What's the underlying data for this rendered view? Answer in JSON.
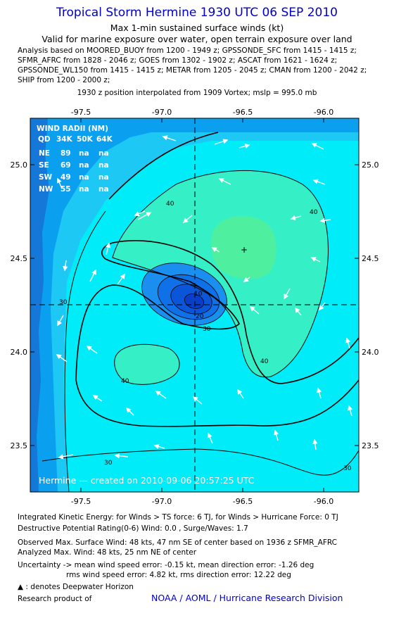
{
  "header": {
    "title": "Tropical Storm Hermine 1930 UTC 06 SEP 2010",
    "subtitle": "Max 1-min sustained surface winds (kt)",
    "valid": "Valid for marine exposure over water, open terrain exposure over land",
    "analysis_lines": [
      "Analysis based on MOORED_BUOY from 1200 - 1949 z; GPSSONDE_SFC from 1415 - 1415 z;",
      "SFMR_AFRC from 1828 - 2046 z; GOES from 1302 - 1902 z; ASCAT from 1621 - 1624 z;",
      "GPSSONDE_WL150 from 1415 - 1415 z; METAR from 1205 - 2045 z; CMAN from 1200 - 2042 z;",
      "SHIP from 1200 - 2000 z;"
    ],
    "position_note": "1930 z position interpolated from 1909 Vortex; mslp = 995.0 mb"
  },
  "map": {
    "lon_ticks": [
      "-97.5",
      "-97.0",
      "-96.5",
      "-96.0"
    ],
    "lat_ticks": [
      "25.0",
      "24.5",
      "24.0",
      "23.5"
    ],
    "center_marker": "+",
    "contour_labels": [
      "40",
      "40",
      "40",
      "40",
      "30",
      "30",
      "30",
      "30",
      "20",
      "10"
    ],
    "wind_radii": {
      "title": "WIND RADII (NM)",
      "header": [
        "QD",
        "34K",
        "50K",
        "64K"
      ],
      "rows": [
        [
          "NE",
          "89",
          "na",
          "na"
        ],
        [
          "SE",
          "69",
          "na",
          "na"
        ],
        [
          "SW",
          "49",
          "na",
          "na"
        ],
        [
          "NW",
          "55",
          "na",
          "na"
        ]
      ]
    },
    "credit": "Hermine — created on 2010-09-06 20:57:25 UTC",
    "colors": {
      "deep_water": "#0aa0ef",
      "level_20": "#1ec8f4",
      "level_30": "#00ecf8",
      "level_40": "#35f0c6",
      "level_45": "#4ef0a0",
      "core_ring_1": "#1a8ff0",
      "core_ring_2": "#1070e8",
      "core_ring_3": "#0a55d8",
      "core_ring_4": "#083ec8"
    }
  },
  "footer": {
    "ike": "Integrated Kinetic Energy:  for Winds > TS force: 6 TJ,  for Winds > Hurricane Force: 0 TJ",
    "dpr": "Destructive Potential Rating(0-6)   Wind: 0.0 , Surge/Waves: 1.7",
    "observed": "Observed Max. Surface Wind: 48 kts, 47 nm SE of center based on 1936 z SFMR_AFRC",
    "analyzed": "Analyzed Max. Wind: 48 kts, 25 nm NE of center",
    "uncertainty": "Uncertainty -> mean wind speed error:  -0.15 kt,   mean direction error:  -1.26 deg",
    "rms": "rms wind speed error: 4.82 kt,   rms direction error: 12.22 deg",
    "deepwater": "▲ : denotes Deepwater Horizon",
    "research": "Research product of",
    "org": "NOAA / AOML / Hurricane Research Division"
  }
}
